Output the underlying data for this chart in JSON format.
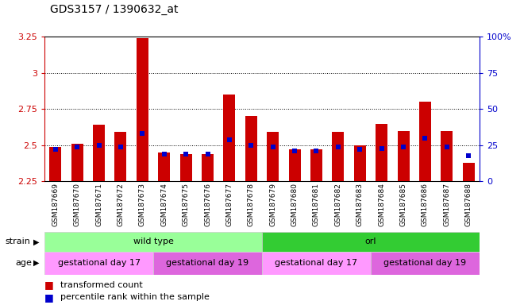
{
  "title": "GDS3157 / 1390632_at",
  "samples": [
    "GSM187669",
    "GSM187670",
    "GSM187671",
    "GSM187672",
    "GSM187673",
    "GSM187674",
    "GSM187675",
    "GSM187676",
    "GSM187677",
    "GSM187678",
    "GSM187679",
    "GSM187680",
    "GSM187681",
    "GSM187682",
    "GSM187683",
    "GSM187684",
    "GSM187685",
    "GSM187686",
    "GSM187687",
    "GSM187688"
  ],
  "transformed_count": [
    2.49,
    2.51,
    2.64,
    2.59,
    3.24,
    2.45,
    2.44,
    2.44,
    2.85,
    2.7,
    2.59,
    2.47,
    2.47,
    2.59,
    2.5,
    2.65,
    2.6,
    2.8,
    2.6,
    2.38
  ],
  "percentile_rank": [
    22,
    24,
    25,
    24,
    33,
    19,
    19,
    19,
    29,
    25,
    24,
    21,
    21,
    24,
    22,
    23,
    24,
    30,
    24,
    18
  ],
  "ymin": 2.25,
  "ymax": 3.25,
  "yticks": [
    2.25,
    2.5,
    2.75,
    3.0,
    3.25
  ],
  "ylabels": [
    "2.25",
    "2.5",
    "2.75",
    "3",
    "3.25"
  ],
  "right_yticks": [
    0,
    25,
    50,
    75,
    100
  ],
  "right_ylabels": [
    "0",
    "25",
    "50",
    "75",
    "100%"
  ],
  "bar_color": "#cc0000",
  "dot_color": "#0000cc",
  "bg_color": "#ffffff",
  "strain_labels": [
    {
      "text": "wild type",
      "start": 0,
      "end": 9,
      "color": "#99ff99"
    },
    {
      "text": "orl",
      "start": 10,
      "end": 19,
      "color": "#33cc33"
    }
  ],
  "age_labels": [
    {
      "text": "gestational day 17",
      "start": 0,
      "end": 4,
      "color": "#ff99ff"
    },
    {
      "text": "gestational day 19",
      "start": 5,
      "end": 9,
      "color": "#dd66dd"
    },
    {
      "text": "gestational day 17",
      "start": 10,
      "end": 14,
      "color": "#ff99ff"
    },
    {
      "text": "gestational day 19",
      "start": 15,
      "end": 19,
      "color": "#dd66dd"
    }
  ],
  "legend_items": [
    {
      "color": "#cc0000",
      "label": "transformed count"
    },
    {
      "color": "#0000cc",
      "label": "percentile rank within the sample"
    }
  ]
}
